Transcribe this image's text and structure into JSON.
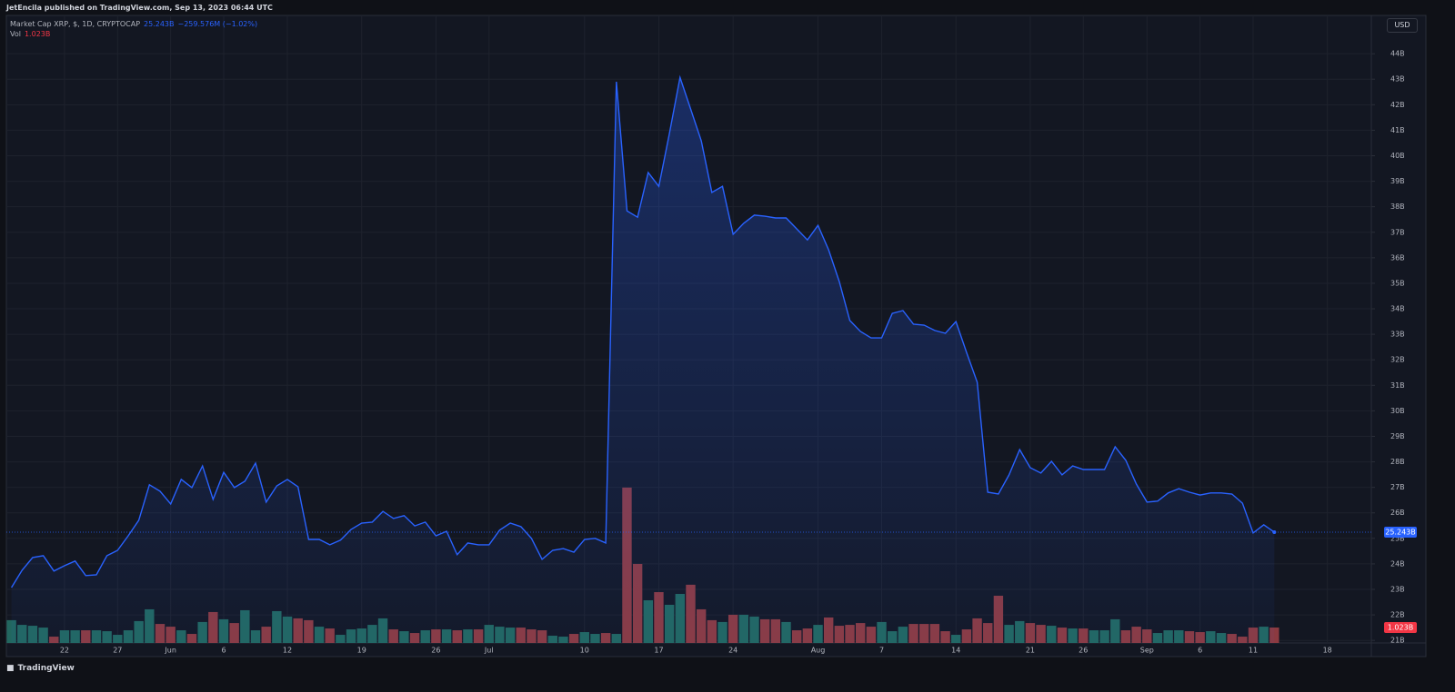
{
  "header": {
    "publisher": "JetEncila published on TradingView.com, Sep 13, 2023 06:44 UTC"
  },
  "footer": {
    "brand": "TradingView"
  },
  "chart_data": {
    "type": "area",
    "currency": "USD",
    "grid": true,
    "x": [
      "May 17",
      "May 18",
      "May 19",
      "May 20",
      "May 21",
      "May 22",
      "May 23",
      "May 24",
      "May 25",
      "May 26",
      "May 27",
      "May 28",
      "May 29",
      "May 30",
      "May 31",
      "Jun 1",
      "Jun 2",
      "Jun 3",
      "Jun 4",
      "Jun 5",
      "Jun 6",
      "Jun 7",
      "Jun 8",
      "Jun 9",
      "Jun 10",
      "Jun 11",
      "Jun 12",
      "Jun 13",
      "Jun 14",
      "Jun 15",
      "Jun 16",
      "Jun 17",
      "Jun 18",
      "Jun 19",
      "Jun 20",
      "Jun 21",
      "Jun 22",
      "Jun 23",
      "Jun 24",
      "Jun 25",
      "Jun 26",
      "Jun 27",
      "Jun 28",
      "Jun 29",
      "Jun 30",
      "Jul 1",
      "Jul 2",
      "Jul 3",
      "Jul 4",
      "Jul 5",
      "Jul 6",
      "Jul 7",
      "Jul 8",
      "Jul 9",
      "Jul 10",
      "Jul 11",
      "Jul 12",
      "Jul 13",
      "Jul 14",
      "Jul 15",
      "Jul 16",
      "Jul 17",
      "Jul 18",
      "Jul 19",
      "Jul 20",
      "Jul 21",
      "Jul 22",
      "Jul 23",
      "Jul 24",
      "Jul 25",
      "Jul 26",
      "Jul 27",
      "Jul 28",
      "Jul 29",
      "Jul 30",
      "Jul 31",
      "Aug 1",
      "Aug 2",
      "Aug 3",
      "Aug 4",
      "Aug 5",
      "Aug 6",
      "Aug 7",
      "Aug 8",
      "Aug 9",
      "Aug 10",
      "Aug 11",
      "Aug 12",
      "Aug 13",
      "Aug 14",
      "Aug 15",
      "Aug 16",
      "Aug 17",
      "Aug 18",
      "Aug 19",
      "Aug 20",
      "Aug 21",
      "Aug 22",
      "Aug 23",
      "Aug 24",
      "Aug 25",
      "Aug 26",
      "Aug 27",
      "Aug 28",
      "Aug 29",
      "Aug 30",
      "Aug 31",
      "Sep 1",
      "Sep 2",
      "Sep 3",
      "Sep 4",
      "Sep 5",
      "Sep 6",
      "Sep 7",
      "Sep 8",
      "Sep 9",
      "Sep 10",
      "Sep 11",
      "Sep 12",
      "Sep 13"
    ],
    "xlim": [
      "May 17",
      "Sep 23"
    ],
    "xticks": [
      {
        "value": "May 22",
        "label": "22"
      },
      {
        "value": "May 27",
        "label": "27"
      },
      {
        "value": "Jun 1",
        "label": "Jun"
      },
      {
        "value": "Jun 6",
        "label": "6"
      },
      {
        "value": "Jun 12",
        "label": "12"
      },
      {
        "value": "Jun 19",
        "label": "19"
      },
      {
        "value": "Jun 26",
        "label": "26"
      },
      {
        "value": "Jul 1",
        "label": "Jul"
      },
      {
        "value": "Jul 10",
        "label": "10"
      },
      {
        "value": "Jul 17",
        "label": "17"
      },
      {
        "value": "Jul 24",
        "label": "24"
      },
      {
        "value": "Aug 1",
        "label": "Aug"
      },
      {
        "value": "Aug 7",
        "label": "7"
      },
      {
        "value": "Aug 14",
        "label": "14"
      },
      {
        "value": "Aug 21",
        "label": "21"
      },
      {
        "value": "Aug 26",
        "label": "26"
      },
      {
        "value": "Sep 1",
        "label": "Sep"
      },
      {
        "value": "Sep 6",
        "label": "6"
      },
      {
        "value": "Sep 11",
        "label": "11"
      },
      {
        "value": "Sep 18",
        "label": "18"
      }
    ],
    "ylim": [
      20.9,
      45.5
    ],
    "yticks": [
      {
        "value": 21,
        "label": "21B"
      },
      {
        "value": 22,
        "label": "22B"
      },
      {
        "value": 23,
        "label": "23B"
      },
      {
        "value": 24,
        "label": "24B"
      },
      {
        "value": 25,
        "label": "25B"
      },
      {
        "value": 26,
        "label": "26B"
      },
      {
        "value": 27,
        "label": "27B"
      },
      {
        "value": 28,
        "label": "28B"
      },
      {
        "value": 29,
        "label": "29B"
      },
      {
        "value": 30,
        "label": "30B"
      },
      {
        "value": 31,
        "label": "31B"
      },
      {
        "value": 32,
        "label": "32B"
      },
      {
        "value": 33,
        "label": "33B"
      },
      {
        "value": 34,
        "label": "34B"
      },
      {
        "value": 35,
        "label": "35B"
      },
      {
        "value": 36,
        "label": "36B"
      },
      {
        "value": 37,
        "label": "37B"
      },
      {
        "value": 38,
        "label": "38B"
      },
      {
        "value": 39,
        "label": "39B"
      },
      {
        "value": 40,
        "label": "40B"
      },
      {
        "value": 41,
        "label": "41B"
      },
      {
        "value": 42,
        "label": "42B"
      },
      {
        "value": 43,
        "label": "43B"
      },
      {
        "value": 44,
        "label": "44B"
      }
    ],
    "y2lim": [
      0,
      41.6
    ],
    "series": [
      {
        "name": "Market Cap XRP, $, 1D, CRYPTOCAP",
        "color": "#2962ff",
        "last_label": "25.243B",
        "change_label": "−259.576M (−1.02%)",
        "values": [
          23.07,
          23.75,
          24.25,
          24.32,
          23.72,
          23.93,
          24.11,
          23.54,
          23.57,
          24.32,
          24.53,
          25.1,
          25.71,
          27.1,
          26.85,
          26.35,
          27.31,
          26.99,
          27.84,
          26.53,
          27.59,
          26.99,
          27.24,
          27.95,
          26.42,
          27.06,
          27.31,
          27.02,
          24.96,
          24.96,
          24.75,
          24.93,
          25.35,
          25.6,
          25.64,
          26.06,
          25.78,
          25.89,
          25.49,
          25.64,
          25.1,
          25.28,
          24.36,
          24.82,
          24.75,
          24.75,
          25.32,
          25.6,
          25.46,
          25.0,
          24.18,
          24.53,
          24.6,
          24.46,
          24.96,
          25.0,
          24.82,
          42.9,
          37.84,
          37.59,
          39.34,
          38.8,
          40.87,
          43.07,
          41.83,
          40.58,
          38.56,
          38.8,
          36.92,
          37.35,
          37.67,
          37.63,
          37.56,
          37.56,
          37.13,
          36.7,
          37.27,
          36.31,
          35.07,
          33.54,
          33.11,
          32.86,
          32.86,
          33.82,
          33.93,
          33.4,
          33.36,
          33.15,
          33.04,
          33.5,
          32.29,
          31.12,
          26.81,
          26.74,
          27.49,
          28.48,
          27.77,
          27.56,
          28.02,
          27.49,
          27.84,
          27.7,
          27.7,
          27.7,
          28.59,
          28.06,
          27.13,
          26.42,
          26.46,
          26.78,
          26.95,
          26.81,
          26.7,
          26.78,
          26.78,
          26.74,
          26.38,
          25.21,
          25.53,
          25.243
        ]
      },
      {
        "name": "Vol",
        "type": "bar",
        "axis": "y2",
        "up_color": "#22675f",
        "down_color": "#8c3a40",
        "last_label": "1.023B",
        "values": [
          1.51,
          1.2,
          1.14,
          1.02,
          0.42,
          0.84,
          0.84,
          0.84,
          0.84,
          0.78,
          0.54,
          0.84,
          1.45,
          2.23,
          1.26,
          1.08,
          0.84,
          0.6,
          1.39,
          2.05,
          1.57,
          1.32,
          2.17,
          0.84,
          1.08,
          2.11,
          1.75,
          1.63,
          1.51,
          1.08,
          0.96,
          0.54,
          0.9,
          0.96,
          1.2,
          1.63,
          0.9,
          0.78,
          0.66,
          0.84,
          0.9,
          0.9,
          0.84,
          0.9,
          0.9,
          1.2,
          1.08,
          1.02,
          1.02,
          0.9,
          0.84,
          0.48,
          0.42,
          0.6,
          0.72,
          0.6,
          0.66,
          0.6,
          10.3,
          5.24,
          2.83,
          3.37,
          2.53,
          3.25,
          3.86,
          2.23,
          1.51,
          1.39,
          1.87,
          1.87,
          1.75,
          1.57,
          1.57,
          1.39,
          0.84,
          0.96,
          1.2,
          1.69,
          1.14,
          1.2,
          1.32,
          1.08,
          1.39,
          0.78,
          1.08,
          1.26,
          1.26,
          1.26,
          0.78,
          0.54,
          0.9,
          1.63,
          1.32,
          3.13,
          1.2,
          1.45,
          1.32,
          1.2,
          1.14,
          1.02,
          0.96,
          0.96,
          0.84,
          0.84,
          1.57,
          0.84,
          1.08,
          0.9,
          0.66,
          0.84,
          0.84,
          0.78,
          0.72,
          0.78,
          0.66,
          0.6,
          0.42,
          1.02,
          1.08,
          1.023
        ]
      }
    ]
  }
}
